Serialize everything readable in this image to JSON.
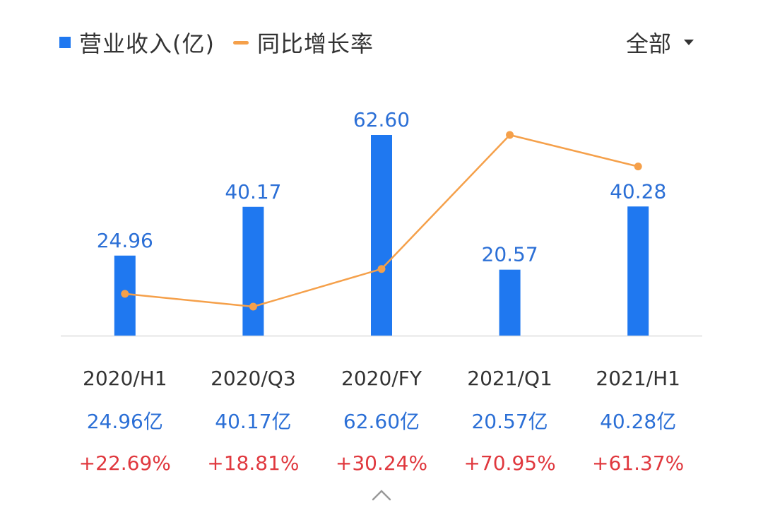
{
  "legend": {
    "bar_label": "营业收入(亿)",
    "line_label": "同比增长率",
    "bar_color": "#1f78f0",
    "line_color": "#f5a04a"
  },
  "filter": {
    "label": "全部",
    "icon": "caret-down-icon"
  },
  "chart_data": {
    "type": "bar",
    "categories": [
      "2020/H1",
      "2020/Q3",
      "2020/FY",
      "2021/Q1",
      "2021/H1"
    ],
    "series": [
      {
        "name": "营业收入(亿)",
        "type": "bar",
        "values": [
          24.96,
          40.17,
          62.6,
          20.57,
          40.28
        ],
        "labels": [
          "24.96",
          "40.17",
          "62.60",
          "20.57",
          "40.28"
        ]
      },
      {
        "name": "同比增长率",
        "type": "line",
        "unit": "%",
        "values": [
          22.69,
          18.81,
          30.24,
          70.95,
          61.37
        ]
      }
    ],
    "ylim": [
      0,
      62.6
    ],
    "line_ylim": [
      18.81,
      70.95
    ],
    "title": "",
    "xlabel": "",
    "ylabel": ""
  },
  "table": {
    "periods": [
      "2020/H1",
      "2020/Q3",
      "2020/FY",
      "2021/Q1",
      "2021/H1"
    ],
    "revenue": [
      "24.96亿",
      "40.17亿",
      "62.60亿",
      "20.57亿",
      "40.28亿"
    ],
    "growth": [
      "+22.69%",
      "+18.81%",
      "+30.24%",
      "+70.95%",
      "+61.37%"
    ]
  },
  "collapse": {
    "icon": "chevron-up-icon"
  }
}
